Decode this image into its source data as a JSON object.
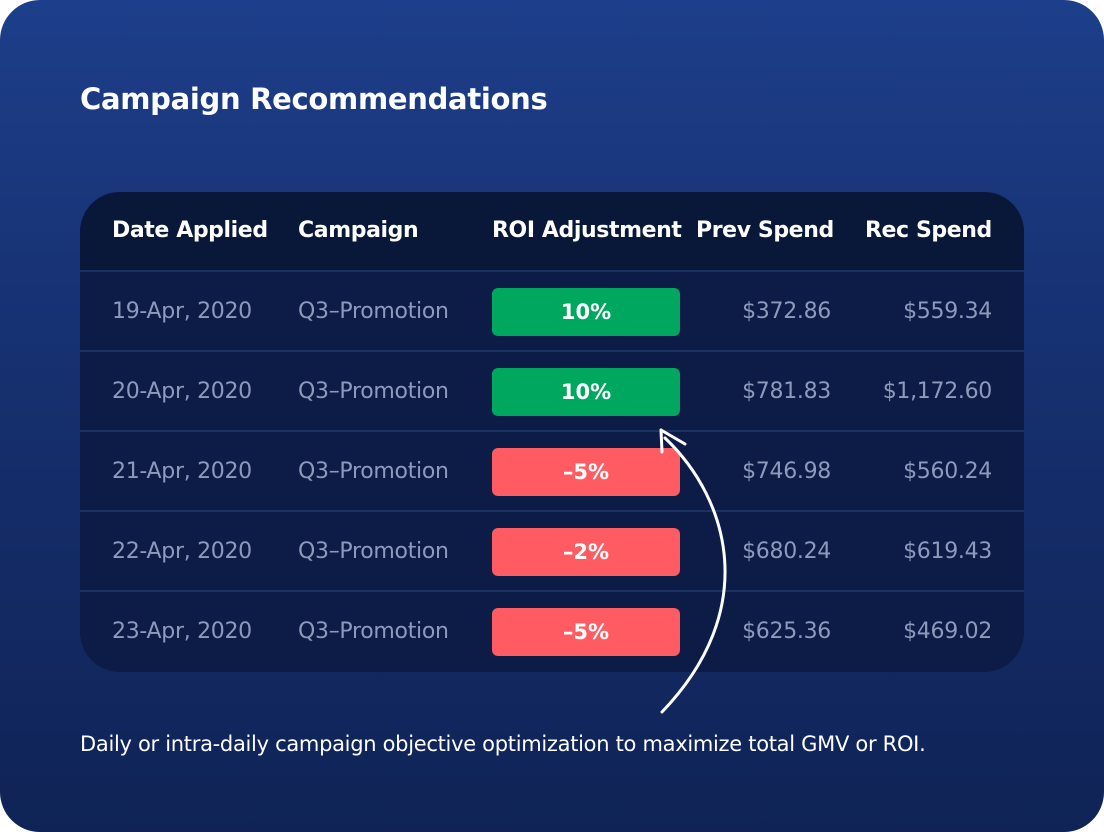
{
  "title": "Campaign Recommendations",
  "table": {
    "headers": {
      "date": "Date Applied",
      "campaign": "Campaign",
      "roi": "ROI Adjustment",
      "prev": "Prev Spend",
      "rec": "Rec Spend"
    },
    "rows": [
      {
        "date": "19-Apr, 2020",
        "campaign": "Q3–Promotion",
        "roi": "10%",
        "status": "positive",
        "prev": "$372.86",
        "rec": "$559.34"
      },
      {
        "date": "20-Apr, 2020",
        "campaign": "Q3–Promotion",
        "roi": "10%",
        "status": "positive",
        "prev": "$781.83",
        "rec": "$1,172.60"
      },
      {
        "date": "21-Apr, 2020",
        "campaign": "Q3–Promotion",
        "roi": "–5%",
        "status": "negative",
        "prev": "$746.98",
        "rec": "$560.24"
      },
      {
        "date": "22-Apr, 2020",
        "campaign": "Q3–Promotion",
        "roi": "–2%",
        "status": "negative",
        "prev": "$680.24",
        "rec": "$619.43"
      },
      {
        "date": "23-Apr, 2020",
        "campaign": "Q3–Promotion",
        "roi": "–5%",
        "status": "negative",
        "prev": "$625.36",
        "rec": "$469.02"
      }
    ]
  },
  "caption": "Daily or intra-daily campaign objective optimization to maximize total GMV or ROI.",
  "colors": {
    "positive": "#00a85f",
    "negative": "#ff5b63"
  },
  "icons": {
    "pointer_arrow": "curved-arrow-icon"
  }
}
